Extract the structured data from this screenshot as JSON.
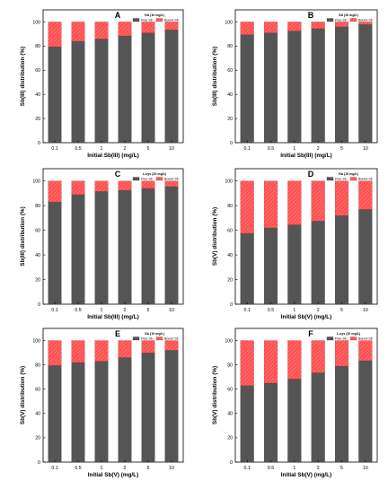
{
  "colors": {
    "free": "#555555",
    "bound": "#ff5050",
    "axis": "#000000",
    "background": "#ffffff"
  },
  "chart_data": [
    {
      "panel": "A",
      "type": "bar",
      "stacked": true,
      "legend_title": "HA (10 mg/L)",
      "legend_position": "top-right",
      "categories": [
        "0.1",
        "0.5",
        "1",
        "2",
        "5",
        "10"
      ],
      "series": [
        {
          "name": "Free Sb",
          "values": [
            79.5,
            84,
            86,
            88.5,
            91,
            93.5
          ]
        },
        {
          "name": "Bound Sb",
          "values": [
            20.5,
            16,
            14,
            11.5,
            9,
            6.5
          ]
        }
      ],
      "xlabel": "Initial Sb(III) (mg/L)",
      "ylabel": "Sb(III) distribution (%)",
      "ylim": [
        0,
        110
      ],
      "yticks": [
        0,
        20,
        40,
        60,
        80,
        100
      ],
      "grid": false
    },
    {
      "panel": "B",
      "type": "bar",
      "stacked": true,
      "legend_title": "SA (10 mg/L)",
      "legend_position": "top-right",
      "categories": [
        "0.1",
        "0.5",
        "1",
        "2",
        "5",
        "10"
      ],
      "series": [
        {
          "name": "Free Sb",
          "values": [
            89.5,
            91,
            92.5,
            94.5,
            96,
            98
          ]
        },
        {
          "name": "Bound Sb",
          "values": [
            10.5,
            9,
            7.5,
            5.5,
            4,
            2
          ]
        }
      ],
      "xlabel": "Initial Sb(III) (mg/L)",
      "ylabel": "Sb(III) distribution (%)",
      "ylim": [
        0,
        110
      ],
      "yticks": [
        0,
        20,
        40,
        60,
        80,
        100
      ],
      "grid": false
    },
    {
      "panel": "C",
      "type": "bar",
      "stacked": true,
      "legend_title": "L-cys (10 mg/L)",
      "legend_position": "top-right",
      "categories": [
        "0.1",
        "0.5",
        "1",
        "2",
        "5",
        "10"
      ],
      "series": [
        {
          "name": "Free Sb",
          "values": [
            83,
            89,
            91.5,
            92.5,
            94,
            95.5
          ]
        },
        {
          "name": "Bound Sb",
          "values": [
            17,
            11,
            8.5,
            7.5,
            6,
            4.5
          ]
        }
      ],
      "xlabel": "Initial Sb(III) (mg/L)",
      "ylabel": "Sb(III) distribution (%)",
      "ylim": [
        0,
        110
      ],
      "yticks": [
        0,
        20,
        40,
        60,
        80,
        100
      ],
      "grid": false
    },
    {
      "panel": "D",
      "type": "bar",
      "stacked": true,
      "legend_title": "HA (10 mg/L)",
      "legend_position": "top-right",
      "categories": [
        "0.1",
        "0.5",
        "1",
        "2",
        "5",
        "10"
      ],
      "series": [
        {
          "name": "Free Sb",
          "values": [
            57.5,
            62,
            64.5,
            67.5,
            72,
            77
          ]
        },
        {
          "name": "Bound Sb",
          "values": [
            42.5,
            38,
            35.5,
            32.5,
            28,
            23
          ]
        }
      ],
      "xlabel": "Initial Sb(V) (mg/L)",
      "ylabel": "Sb(V) distribution (%)",
      "ylim": [
        0,
        110
      ],
      "yticks": [
        0,
        20,
        40,
        60,
        80,
        100
      ],
      "grid": false
    },
    {
      "panel": "E",
      "type": "bar",
      "stacked": true,
      "legend_title": "SA (10 mg/L)",
      "legend_position": "top-right",
      "categories": [
        "0.1",
        "0.5",
        "1",
        "2",
        "5",
        "10"
      ],
      "series": [
        {
          "name": "Free Sb",
          "values": [
            79.5,
            82,
            83,
            86,
            90,
            92
          ]
        },
        {
          "name": "Bound Sb",
          "values": [
            20.5,
            18,
            17,
            14,
            10,
            8
          ]
        }
      ],
      "xlabel": "Initial Sb(V) (mg/L)",
      "ylabel": "Sb(V) distribution (%)",
      "ylim": [
        0,
        110
      ],
      "yticks": [
        0,
        20,
        40,
        60,
        80,
        100
      ],
      "grid": false
    },
    {
      "panel": "F",
      "type": "bar",
      "stacked": true,
      "legend_title": "L-cys (10 mg/L)",
      "legend_position": "top-right",
      "categories": [
        "0.1",
        "0.5",
        "1",
        "2",
        "5",
        "10"
      ],
      "series": [
        {
          "name": "Free Sb",
          "values": [
            63,
            65,
            68.5,
            73.5,
            79,
            83.5
          ]
        },
        {
          "name": "Bound Sb",
          "values": [
            37,
            35,
            31.5,
            26.5,
            21,
            16.5
          ]
        }
      ],
      "xlabel": "Initial Sb(V) (mg/L)",
      "ylabel": "Sb(V) distribution (%)",
      "ylim": [
        0,
        110
      ],
      "yticks": [
        0,
        20,
        40,
        60,
        80,
        100
      ],
      "grid": false
    }
  ]
}
